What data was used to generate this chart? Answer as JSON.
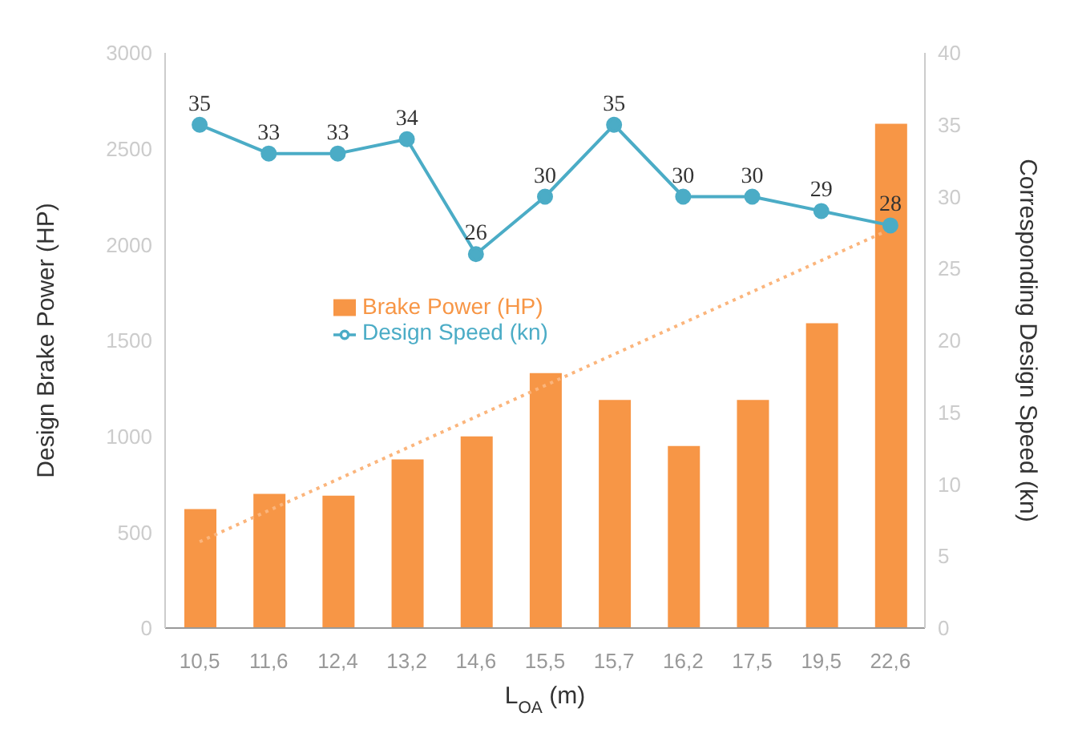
{
  "chart_data": {
    "type": "bar",
    "xlabel": "L$_{OA}$ (m)",
    "ylabel": "Design Brake Power (HP)",
    "y2label": "Corresponding Design Speed (kn)",
    "categories": [
      "10,5",
      "11,6",
      "12,4",
      "13,2",
      "14,6",
      "15,5",
      "15,7",
      "16,2",
      "17,5",
      "19,5",
      "22,6"
    ],
    "series": [
      {
        "name": "Brake Power (HP)",
        "color": "#f79646",
        "values": [
          620,
          700,
          690,
          880,
          1000,
          1330,
          1190,
          950,
          1190,
          1590,
          2630
        ]
      },
      {
        "type": "line",
        "color": "#fbb57c",
        "line_style": "dotted",
        "marker": "none",
        "values": [
          450,
          null,
          null,
          null,
          null,
          null,
          null,
          null,
          null,
          null,
          2080
        ]
      },
      {
        "name": "Design Speed (kn)",
        "type": "line",
        "axis": "y2",
        "color": "#4bacc6",
        "marker": "circle",
        "line_style": "solid",
        "data_labels": true,
        "values": [
          35,
          33,
          33,
          34,
          26,
          30,
          35,
          30,
          30,
          29,
          28
        ]
      }
    ],
    "ylim": [
      0,
      3000
    ],
    "yticks": [
      0,
      500,
      1000,
      1500,
      2000,
      2500,
      3000
    ],
    "y2lim": [
      0,
      40
    ],
    "y2ticks": [
      0,
      5,
      10,
      15,
      20,
      25,
      30,
      35,
      40
    ],
    "grid": false,
    "legend": "center"
  }
}
